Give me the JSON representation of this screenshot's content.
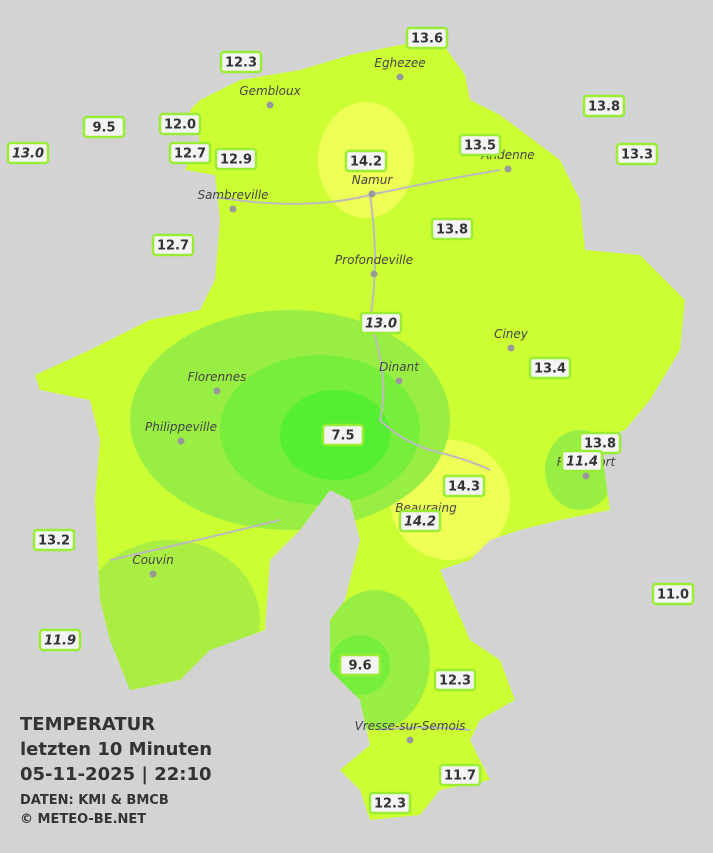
{
  "cities": [
    "Eghezee",
    "Gembloux",
    "Andenne",
    "Namur",
    "Sambreville",
    "Profondeville",
    "Ciney",
    "Dinant",
    "Florennes",
    "Philippeville",
    "Rochefort",
    "Beauraing",
    "Couvin",
    "Vresse-sur-Semois"
  ],
  "stations": [
    {
      "label": "13.6"
    },
    {
      "label": "12.3"
    },
    {
      "label": "13.8"
    },
    {
      "label": "9.5"
    },
    {
      "label": "12.0"
    },
    {
      "label": "13.5"
    },
    {
      "label": "13.0",
      "italic": true
    },
    {
      "label": "12.7"
    },
    {
      "label": "12.9"
    },
    {
      "label": "14.2"
    },
    {
      "label": "13.3"
    },
    {
      "label": "13.8"
    },
    {
      "label": "12.7"
    },
    {
      "label": "13.0",
      "italic": true
    },
    {
      "label": "13.4"
    },
    {
      "label": "7.5"
    },
    {
      "label": "13.8"
    },
    {
      "label": "11.4",
      "italic": true
    },
    {
      "label": "14.3"
    },
    {
      "label": "14.2",
      "italic": true
    },
    {
      "label": "13.2"
    },
    {
      "label": "11.0"
    },
    {
      "label": "11.9",
      "italic": true
    },
    {
      "label": "9.6"
    },
    {
      "label": "12.3"
    },
    {
      "label": "11.7"
    },
    {
      "label": "12.3"
    }
  ],
  "legend": {
    "title": "TEMPERATUR",
    "period": "letzten 10 Minuten",
    "datetime": "05-11-2025  |  22:10",
    "source": "DATEN: KMI & BMCB",
    "copyright": "© METEO-BE.NET"
  }
}
